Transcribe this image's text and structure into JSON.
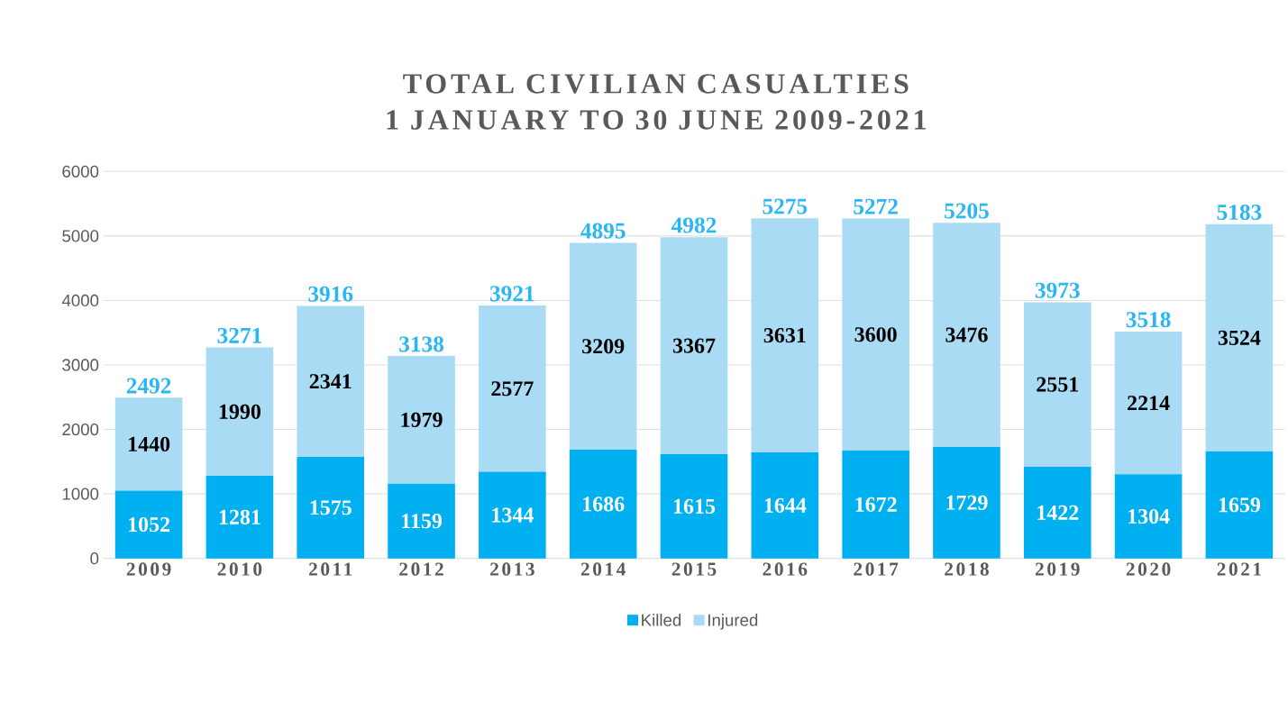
{
  "chart_data": {
    "type": "bar",
    "stacked": true,
    "title": "TOTAL CIVILIAN CASUALTIES",
    "subtitle": "1 JANUARY TO 30 JUNE 2009-2021",
    "categories": [
      "2009",
      "2010",
      "2011",
      "2012",
      "2013",
      "2014",
      "2015",
      "2016",
      "2017",
      "2018",
      "2019",
      "2020",
      "2021"
    ],
    "series": [
      {
        "name": "Killed",
        "color": "#00b0f0",
        "values": [
          1052,
          1281,
          1575,
          1159,
          1344,
          1686,
          1615,
          1644,
          1672,
          1729,
          1422,
          1304,
          1659
        ]
      },
      {
        "name": "Injured",
        "color": "#a9dcf4",
        "values": [
          1440,
          1990,
          2341,
          1979,
          2577,
          3209,
          3367,
          3631,
          3600,
          3476,
          2551,
          2214,
          3524
        ]
      }
    ],
    "totals": [
      "2492",
      "3271",
      "3916",
      "3138",
      "3921",
      "4895",
      "4982",
      "5275",
      "5272",
      "5205",
      "3973",
      "3518",
      "5183"
    ],
    "data_labels": true,
    "ylim": [
      0,
      6000
    ],
    "yticks": [
      0,
      1000,
      2000,
      3000,
      4000,
      5000,
      6000
    ],
    "grid": "y",
    "legend": "bottom"
  }
}
